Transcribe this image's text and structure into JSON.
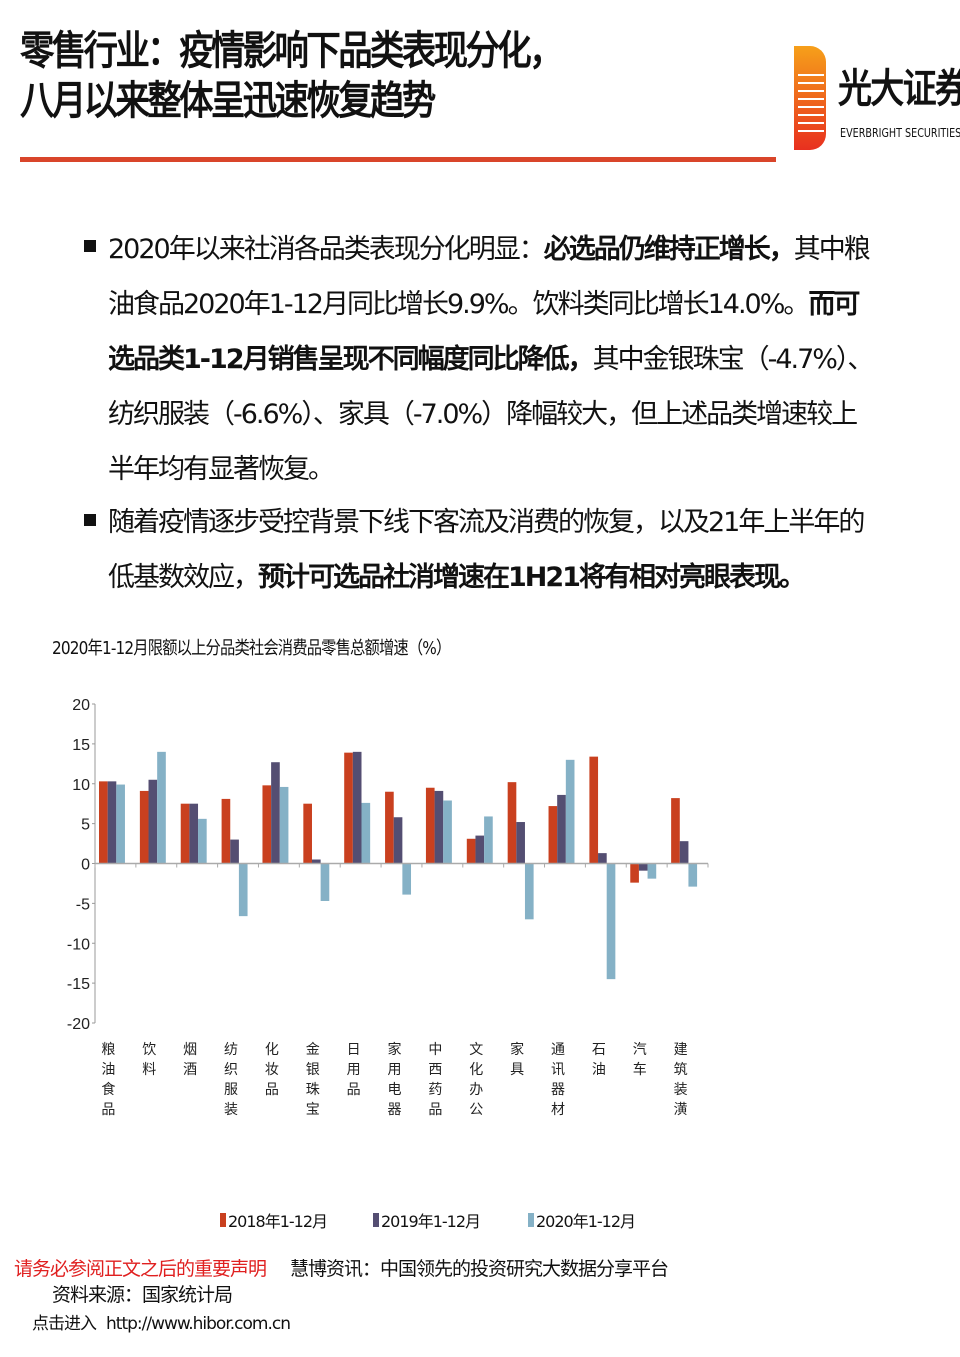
{
  "header": {
    "title_line1": "零售行业：疫情影响下品类表现分化，",
    "title_line2": "八月以来整体呈迅速恢复趋势",
    "logo_cn": "光大证券",
    "logo_en": "EVERBRIGHT SECURITIES",
    "accent": "#d9452a"
  },
  "bullets": [
    {
      "parts": [
        {
          "text": "2020年以来社消各品类表现分化明显：",
          "bold": false
        },
        {
          "text": "必选品仍维持正增长，",
          "bold": true
        },
        {
          "text": "其中粮油食品2020年1-12月同比增长9.9%。饮料类同比增长14.0%。",
          "bold": false
        },
        {
          "text": "而可选品类1-12月销售呈现不同幅度同比降低，",
          "bold": true
        },
        {
          "text": "其中金银珠宝（-4.7%）、纺织服装（-6.6%）、家具（-7.0%）降幅较大，但上述品类增速较上半年均有显著恢复。",
          "bold": false
        }
      ]
    },
    {
      "parts": [
        {
          "text": "随着疫情逐步受控背景下线下客流及消费的恢复，以及21年上半年的低基数效应，",
          "bold": false
        },
        {
          "text": "预计可选品社消增速在1H21将有相对亮眼表现。",
          "bold": true
        }
      ]
    }
  ],
  "chart_data": {
    "type": "bar",
    "title": "2020年1-12月限额以上分品类社会消费品零售总额增速（%）",
    "categories": [
      "粮油食品",
      "饮料",
      "烟酒",
      "纺织服装",
      "化妆品",
      "金银珠宝",
      "日用品",
      "家用电器",
      "中西药品",
      "文化办公",
      "家具",
      "通讯器材",
      "石油",
      "汽车",
      "建筑装潢"
    ],
    "series": [
      {
        "name": "2018年1-12月",
        "color": "#c9401f",
        "values": [
          10.3,
          9.1,
          7.5,
          8.1,
          9.8,
          7.5,
          13.9,
          9.0,
          9.5,
          3.1,
          10.2,
          7.2,
          13.4,
          -2.4,
          8.2
        ]
      },
      {
        "name": "2019年1-12月",
        "color": "#544e72",
        "values": [
          10.3,
          10.5,
          7.5,
          3.0,
          12.7,
          0.5,
          14.0,
          5.8,
          9.1,
          3.5,
          5.2,
          8.6,
          1.3,
          -0.9,
          2.8
        ]
      },
      {
        "name": "2020年1-12月",
        "color": "#85b1c6",
        "values": [
          9.9,
          14.0,
          5.6,
          -6.6,
          9.6,
          -4.7,
          7.6,
          -3.9,
          7.9,
          5.9,
          -7.0,
          13.0,
          -14.5,
          -1.9,
          -2.9
        ]
      }
    ],
    "yticks": [
      20,
      15,
      10,
      5,
      0,
      -5,
      -10,
      -15,
      -20
    ],
    "ylim": [
      -20,
      20
    ],
    "grid": false,
    "legend": "bottom"
  },
  "footer": {
    "disclaimer": "请务必参阅正文之后的重要声明",
    "hibor": "慧博资讯：中国领先的投资研究大数据分享平台",
    "source": "资料来源：国家统计局",
    "link_prefix": "点击进入",
    "link": "http://www.hibor.com.cn"
  }
}
